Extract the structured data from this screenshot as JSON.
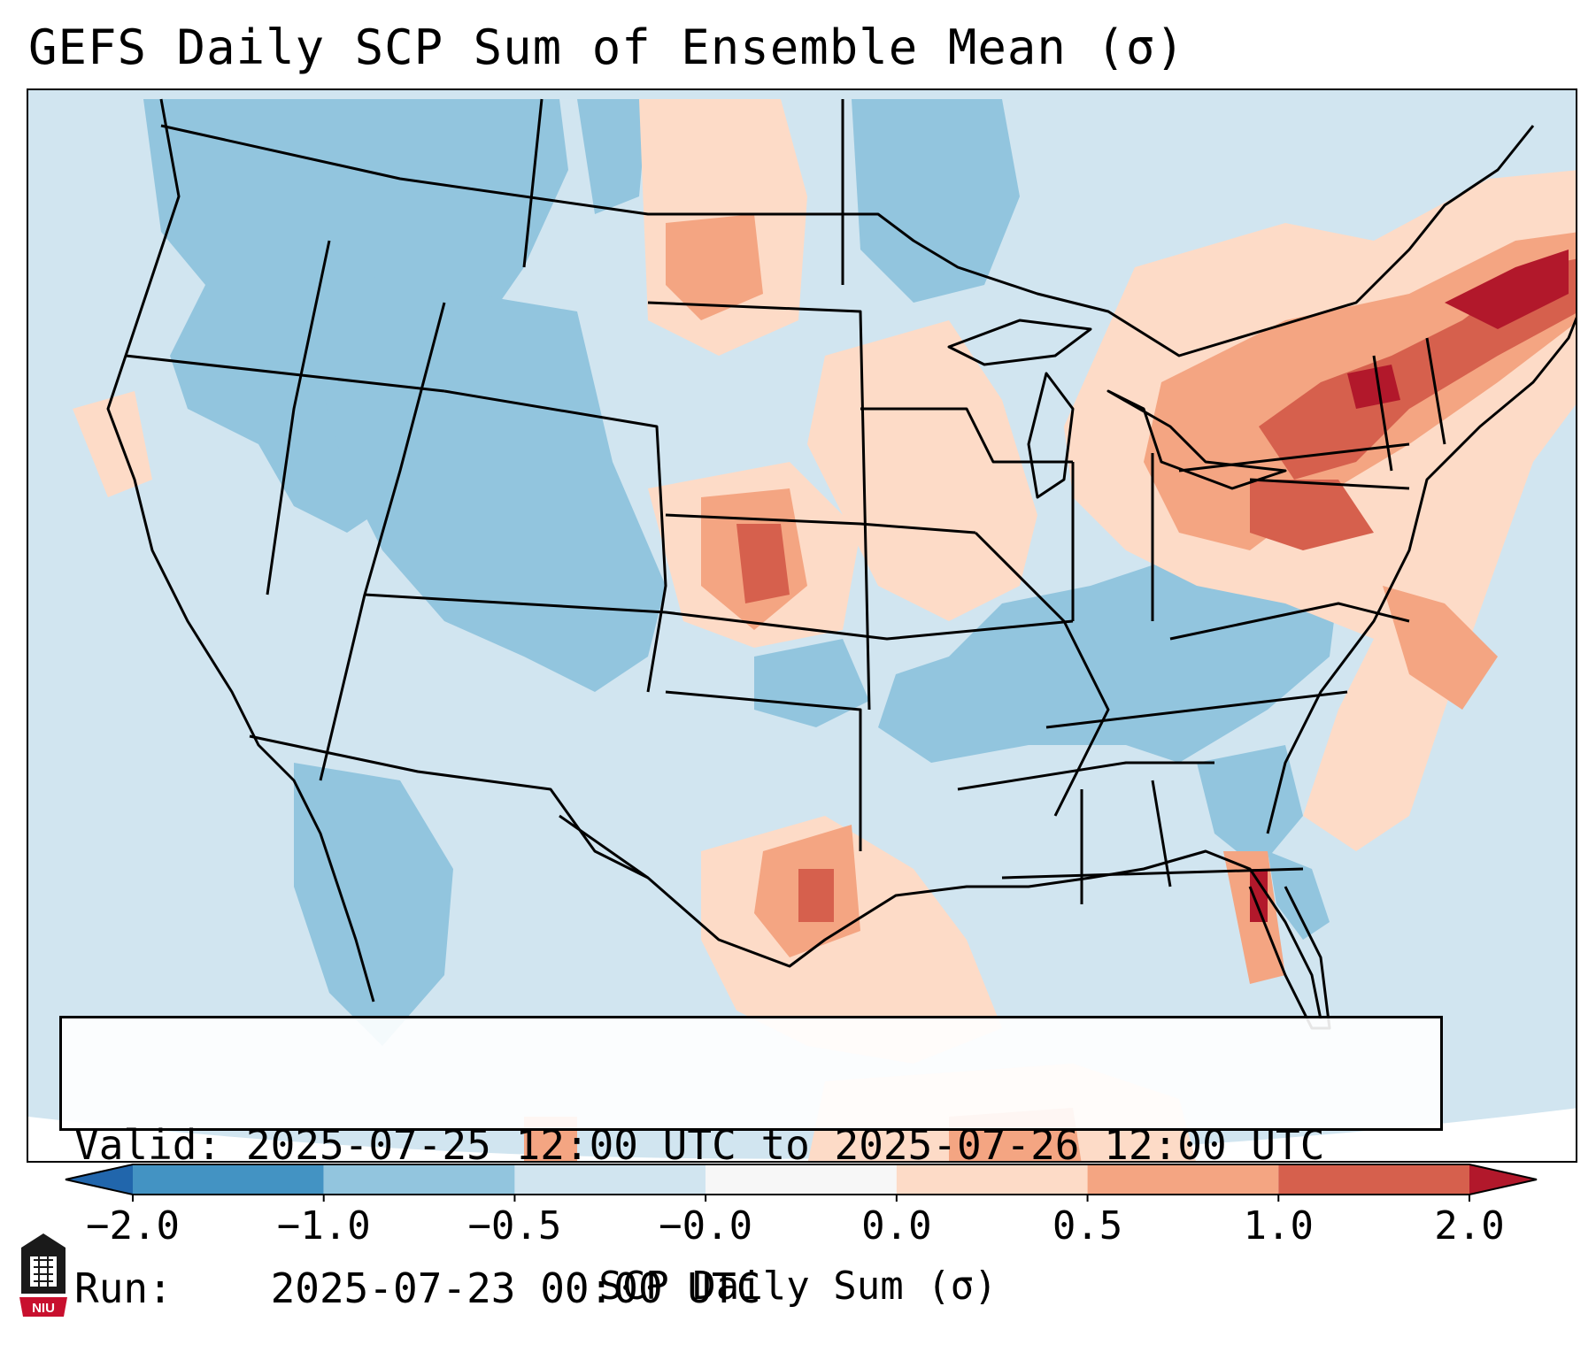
{
  "title": "GEFS Daily SCP Sum of Ensemble Mean (σ)",
  "info": {
    "valid_label": "Valid:",
    "valid_value": "2025-07-25 12:00 UTC to 2025-07-26 12:00 UTC",
    "run_label": "Run:",
    "run_value": "2025-07-23 00:00 UTC"
  },
  "colorbar": {
    "label": "SCP Daily Sum (σ)",
    "ticks": [
      "−2.0",
      "−1.0",
      "−0.5",
      "−0.0",
      "0.0",
      "0.5",
      "1.0",
      "2.0"
    ],
    "bins": [
      {
        "range": "< -2.0",
        "color": "#2166ac"
      },
      {
        "range": "-2.0 to -1.0",
        "color": "#4393c3"
      },
      {
        "range": "-1.0 to -0.5",
        "color": "#92c5de"
      },
      {
        "range": "-0.5 to -0.0",
        "color": "#d1e5f0"
      },
      {
        "range": "-0.0 to 0.0",
        "color": "#f7f7f7"
      },
      {
        "range": "0.0 to 0.5",
        "color": "#fddbc7"
      },
      {
        "range": "0.5 to 1.0",
        "color": "#f4a582"
      },
      {
        "range": "1.0 to 2.0",
        "color": "#d6604d"
      },
      {
        "range": "> 2.0",
        "color": "#b2182b"
      }
    ]
  },
  "map": {
    "region": "Contiguous United States",
    "field": "SCP daily sum anomaly",
    "anomaly_regions": [
      {
        "area": "Northeast / New York / New England",
        "level": "1.0 to 2.0"
      },
      {
        "area": "Western Atlantic off New England",
        "level": "0.5 to 1.0"
      },
      {
        "area": "Central Plains (Kansas)",
        "level": "0.5 to 1.0"
      },
      {
        "area": "Northern Plains (North Dakota)",
        "level": "0.5 to 1.0"
      },
      {
        "area": "North Texas",
        "level": "0.5 to 1.0"
      },
      {
        "area": "South Florida",
        "level": "1.0 to 2.0"
      },
      {
        "area": "Intermountain West",
        "level": "-1.0 to -0.5"
      },
      {
        "area": "Ohio Valley / Tennessee",
        "level": "-1.0 to -0.5"
      }
    ]
  },
  "logo": {
    "text": "NIU"
  }
}
